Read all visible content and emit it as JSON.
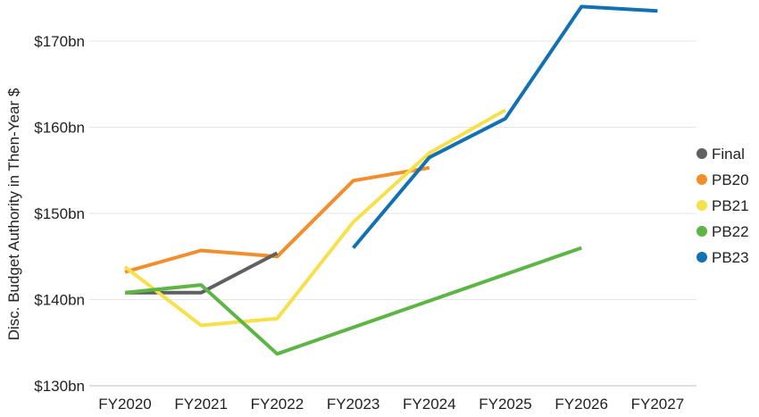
{
  "chart_data": {
    "type": "line",
    "ylabel": "Disc. Budget Authority in Then-Year $",
    "ylim": [
      130,
      172
    ],
    "y_ticks": [
      {
        "value": 130,
        "label": "$130bn"
      },
      {
        "value": 140,
        "label": "$140bn"
      },
      {
        "value": 150,
        "label": "$150bn"
      },
      {
        "value": 160,
        "label": "$160bn"
      },
      {
        "value": 170,
        "label": "$170bn"
      }
    ],
    "categories": [
      "FY2020",
      "FY2021",
      "FY2022",
      "FY2023",
      "FY2024",
      "FY2025",
      "FY2026",
      "FY2027"
    ],
    "grid": true,
    "legend_position": "right",
    "series": [
      {
        "name": "Final",
        "color": "#606060",
        "values": [
          140.8,
          140.8,
          145.4,
          null,
          null,
          null,
          null,
          null
        ]
      },
      {
        "name": "PB20",
        "color": "#f28e2b",
        "values": [
          143.2,
          145.7,
          145.0,
          153.8,
          155.3,
          null,
          null,
          null
        ]
      },
      {
        "name": "PB21",
        "color": "#f7e04a",
        "values": [
          143.8,
          137.0,
          137.8,
          149.0,
          157.0,
          162.0,
          null,
          null
        ]
      },
      {
        "name": "PB22",
        "color": "#5cb545",
        "values": [
          140.8,
          141.7,
          133.7,
          null,
          null,
          null,
          146.0,
          null
        ]
      },
      {
        "name": "PB23",
        "color": "#1271b2",
        "values": [
          null,
          null,
          null,
          146.0,
          156.5,
          161.0,
          174.0,
          173.5
        ]
      }
    ]
  }
}
